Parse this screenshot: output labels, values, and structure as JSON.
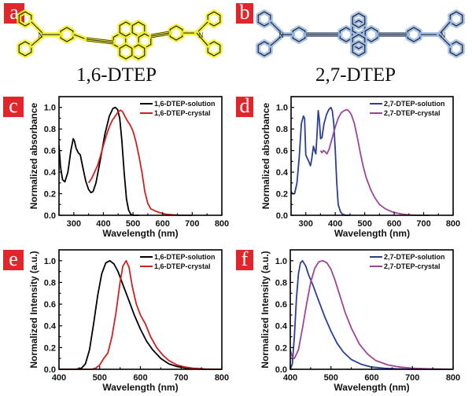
{
  "panels": {
    "a": {
      "badge": "a",
      "molecule": "1,6-DTEP",
      "glow": "#f2ef2a"
    },
    "b": {
      "badge": "b",
      "molecule": "2,7-DTEP",
      "glow": "#9dbbe8"
    }
  },
  "chart_data": [
    {
      "panel": "c",
      "type": "line",
      "xlabel": "Wavelength (nm)",
      "ylabel": "Normalized absorbance",
      "xlim": [
        250,
        800
      ],
      "ylim": [
        0,
        1.1
      ],
      "xticks": [
        300,
        400,
        500,
        600,
        700,
        800
      ],
      "yticks": [
        0.0,
        0.2,
        0.4,
        0.6,
        0.8,
        1.0
      ],
      "legend": "top-right",
      "series": [
        {
          "name": "1,6-DTEP-solution",
          "color": "#000000",
          "x": [
            250,
            255,
            262,
            270,
            280,
            290,
            298,
            302,
            308,
            315,
            322,
            330,
            340,
            350,
            358,
            365,
            375,
            390,
            405,
            420,
            432,
            440,
            448,
            455,
            462,
            470,
            478,
            485,
            492,
            500,
            510,
            520
          ],
          "y": [
            0.65,
            0.45,
            0.33,
            0.31,
            0.4,
            0.6,
            0.71,
            0.69,
            0.62,
            0.58,
            0.56,
            0.45,
            0.32,
            0.24,
            0.21,
            0.22,
            0.3,
            0.52,
            0.75,
            0.92,
            0.99,
            1.0,
            0.98,
            0.9,
            0.7,
            0.4,
            0.15,
            0.05,
            0.01,
            0.0,
            0.0,
            0.0
          ]
        },
        {
          "name": "1,6-DTEP-crystal",
          "color": "#d02020",
          "x": [
            350,
            360,
            370,
            380,
            390,
            400,
            410,
            420,
            430,
            440,
            450,
            458,
            465,
            472,
            480,
            490,
            500,
            510,
            520,
            530,
            540,
            550,
            560,
            575,
            590,
            610,
            630,
            660,
            700
          ],
          "y": [
            0.3,
            0.34,
            0.4,
            0.46,
            0.55,
            0.65,
            0.74,
            0.82,
            0.88,
            0.92,
            0.96,
            0.975,
            0.96,
            0.92,
            0.88,
            0.84,
            0.78,
            0.68,
            0.55,
            0.4,
            0.22,
            0.11,
            0.06,
            0.04,
            0.025,
            0.01,
            0.005,
            0.0,
            0.0
          ]
        }
      ]
    },
    {
      "panel": "d",
      "type": "line",
      "xlabel": "Wavelength (nm)",
      "ylabel": "Normalized absorbance",
      "xlim": [
        250,
        800
      ],
      "ylim": [
        0,
        1.1
      ],
      "xticks": [
        300,
        400,
        500,
        600,
        700,
        800
      ],
      "yticks": [
        0.0,
        0.2,
        0.4,
        0.6,
        0.8,
        1.0
      ],
      "legend": "top-right",
      "series": [
        {
          "name": "2,7-DTEP-solution",
          "color": "#2a3f94",
          "x": [
            250,
            255,
            262,
            270,
            278,
            285,
            292,
            296,
            300,
            303,
            310,
            316,
            320,
            326,
            330,
            334,
            338,
            342,
            346,
            350,
            355,
            362,
            370,
            378,
            385,
            390,
            395,
            400,
            405,
            410,
            418,
            425,
            435,
            450
          ],
          "y": [
            0.22,
            0.2,
            0.2,
            0.3,
            0.55,
            0.85,
            0.92,
            0.9,
            0.56,
            0.54,
            0.5,
            0.46,
            0.52,
            0.64,
            0.6,
            0.57,
            0.75,
            0.97,
            0.88,
            0.71,
            0.72,
            0.85,
            0.93,
            0.98,
            1.0,
            0.97,
            0.85,
            0.6,
            0.3,
            0.1,
            0.03,
            0.01,
            0.0,
            0.0
          ]
        },
        {
          "name": "2,7-DTEP-crystal",
          "color": "#a0449a",
          "x": [
            350,
            355,
            360,
            365,
            372,
            380,
            390,
            400,
            410,
            420,
            430,
            440,
            448,
            455,
            465,
            475,
            485,
            495,
            505,
            520,
            535,
            550,
            570,
            590,
            610,
            630,
            650,
            680,
            720
          ],
          "y": [
            0.6,
            0.58,
            0.6,
            0.59,
            0.57,
            0.62,
            0.72,
            0.82,
            0.9,
            0.95,
            0.97,
            0.98,
            0.96,
            0.93,
            0.85,
            0.72,
            0.58,
            0.45,
            0.35,
            0.24,
            0.16,
            0.1,
            0.06,
            0.035,
            0.02,
            0.01,
            0.004,
            0.0,
            0.0
          ]
        }
      ]
    },
    {
      "panel": "e",
      "type": "line",
      "xlabel": "Wavelength (nm)",
      "ylabel": "Normalized Intensity (a.u.)",
      "xlim": [
        400,
        800
      ],
      "ylim": [
        0,
        1.1
      ],
      "xticks": [
        400,
        500,
        600,
        700,
        800
      ],
      "yticks": [
        0.0,
        0.2,
        0.4,
        0.6,
        0.8,
        1.0
      ],
      "legend": "top-right",
      "series": [
        {
          "name": "1,6-DTEP-solution",
          "color": "#000000",
          "x": [
            400,
            440,
            455,
            465,
            475,
            485,
            495,
            505,
            515,
            525,
            535,
            545,
            555,
            565,
            575,
            585,
            600,
            615,
            630,
            650,
            670,
            690,
            710,
            730,
            760,
            800
          ],
          "y": [
            0.0,
            0.0,
            0.01,
            0.05,
            0.18,
            0.42,
            0.68,
            0.88,
            0.98,
            1.0,
            0.97,
            0.9,
            0.8,
            0.7,
            0.6,
            0.5,
            0.37,
            0.26,
            0.18,
            0.1,
            0.05,
            0.025,
            0.012,
            0.005,
            0.0,
            0.0
          ]
        },
        {
          "name": "1,6-DTEP-crystal",
          "color": "#d02020",
          "x": [
            400,
            480,
            490,
            500,
            510,
            520,
            530,
            540,
            550,
            557,
            565,
            572,
            580,
            590,
            600,
            612,
            625,
            640,
            655,
            670,
            690,
            710,
            730,
            760,
            800
          ],
          "y": [
            0.0,
            0.0,
            0.01,
            0.04,
            0.1,
            0.15,
            0.3,
            0.52,
            0.8,
            0.95,
            1.0,
            0.94,
            0.76,
            0.6,
            0.5,
            0.42,
            0.3,
            0.2,
            0.13,
            0.08,
            0.04,
            0.02,
            0.01,
            0.003,
            0.0
          ]
        }
      ]
    },
    {
      "panel": "f",
      "type": "line",
      "xlabel": "Wavelength (nm)",
      "ylabel": "Normalized Intensity (a.u.)",
      "xlim": [
        400,
        800
      ],
      "ylim": [
        0,
        1.1
      ],
      "xticks": [
        400,
        500,
        600,
        700,
        800
      ],
      "yticks": [
        0.0,
        0.2,
        0.4,
        0.6,
        0.8,
        1.0
      ],
      "legend": "top-right",
      "series": [
        {
          "name": "2,7-DTEP-solution",
          "color": "#2a3f94",
          "x": [
            400,
            405,
            410,
            415,
            420,
            425,
            430,
            438,
            445,
            455,
            465,
            475,
            485,
            500,
            515,
            530,
            550,
            575,
            600,
            630,
            660,
            700,
            750,
            800
          ],
          "y": [
            0.0,
            0.05,
            0.3,
            0.65,
            0.88,
            0.98,
            1.0,
            0.95,
            0.87,
            0.78,
            0.68,
            0.58,
            0.48,
            0.35,
            0.24,
            0.16,
            0.09,
            0.045,
            0.02,
            0.01,
            0.004,
            0.0,
            0.0,
            0.0
          ]
        },
        {
          "name": "2,7-DTEP-crystal",
          "color": "#a0449a",
          "x": [
            400,
            405,
            410,
            420,
            430,
            440,
            450,
            460,
            470,
            480,
            490,
            500,
            510,
            520,
            535,
            550,
            570,
            590,
            610,
            640,
            670,
            700,
            740,
            800
          ],
          "y": [
            0.18,
            0.11,
            0.1,
            0.18,
            0.38,
            0.6,
            0.8,
            0.93,
            0.99,
            1.0,
            0.98,
            0.92,
            0.82,
            0.7,
            0.52,
            0.38,
            0.23,
            0.14,
            0.08,
            0.04,
            0.02,
            0.01,
            0.004,
            0.0
          ]
        }
      ]
    }
  ]
}
